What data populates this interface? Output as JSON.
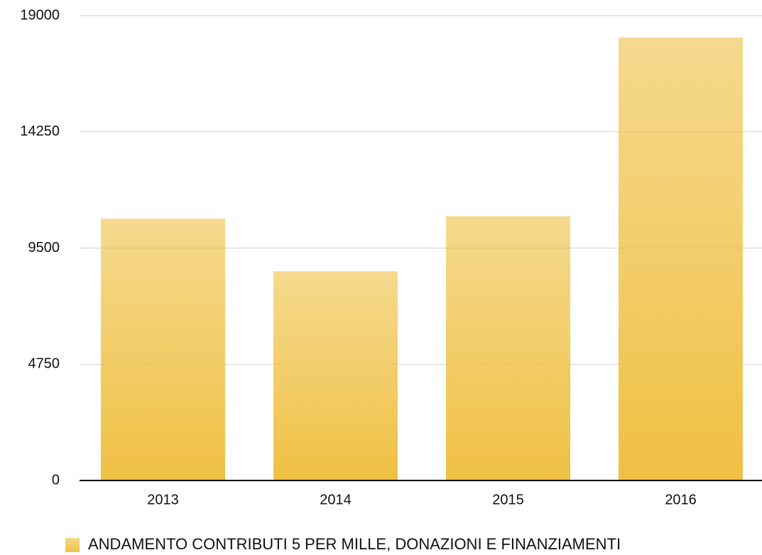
{
  "chart_data": {
    "type": "bar",
    "categories": [
      "2013",
      "2014",
      "2015",
      "2016"
    ],
    "series": [
      {
        "name": "ANDAMENTO CONTRIBUTI 5 PER MILLE, DONAZIONI E FINANZIAMENTI",
        "color": "#efc043",
        "values": [
          10700,
          8550,
          10800,
          18100
        ]
      }
    ],
    "ylim": [
      0,
      19000
    ],
    "yticks": [
      0,
      4750,
      9500,
      14250,
      19000
    ],
    "grid": true,
    "legend": "bottom"
  }
}
